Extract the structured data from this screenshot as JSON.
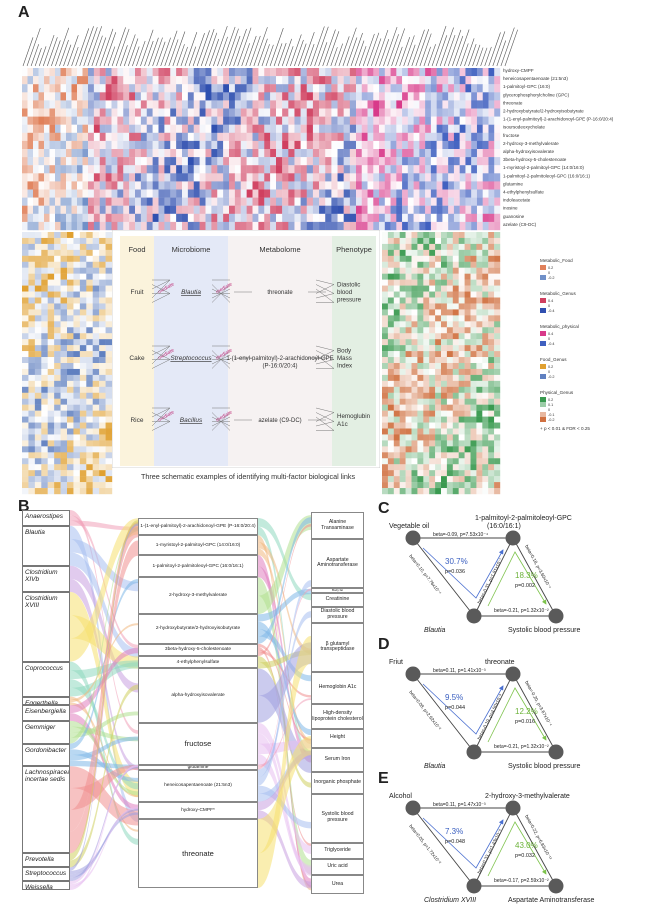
{
  "panels": {
    "a": "A",
    "b": "B",
    "c": "C",
    "d": "D",
    "e": "E"
  },
  "heatmap": {
    "row_labels": [
      "hydroxy-CMPF",
      "heneicosapentaenoate (21:5n3)",
      "1-palmitoyl-GPC (16:0)",
      "glycerophosphorylcholine (GPC)",
      "threonate",
      "2-hydroxybutyrate/2-hydroxyisobutyrate",
      "1-(1-enyl-palmitoyl)-2-arachidonoyl-GPE (P-16:0/20:4)",
      "isoursodeoxycholate",
      "fructose",
      "2-hydroxy-3-methylvalerate",
      "alpha-hydroxyisovalerate",
      "3beta-hydroxy-5-cholestenoate",
      "1-myristoyl-2-palmitoyl-GPC (14:0/16:0)",
      "1-palmitoyl-2-palmitoleoyl-GPC (16:0/16:1)",
      "glutamine",
      "4-ethylphenylsulfate",
      "indoleacetate",
      "inosine",
      "guanosine",
      "azelate (C9-DC)"
    ],
    "legend": [
      {
        "title": "Metabolic_Food",
        "ticks": [
          "0.2",
          "0",
          "-0.2"
        ]
      },
      {
        "title": "Metabolic_Genus",
        "ticks": [
          "0.4",
          "0",
          "-0.4"
        ]
      },
      {
        "title": "Metabolic_physical",
        "ticks": [
          "0.4",
          "0",
          "-0.4"
        ]
      },
      {
        "title": "Food_Genus",
        "ticks": [
          "0.2",
          "0",
          "-0.2"
        ]
      },
      {
        "title": "Physical_Genus",
        "ticks": [
          "0.2",
          "0.1",
          "0",
          "-0.1",
          "-0.2"
        ]
      }
    ],
    "significance_note": "+ p < 0.01 & FDR < 0.25"
  },
  "schematic": {
    "headers": [
      "Food",
      "Microbiome",
      "Metabolome",
      "Phenotype"
    ],
    "rows": [
      {
        "food": "Fruit",
        "genus": "Blautia",
        "metabolite": "threonate",
        "phenotype": "Diastolic blood pressure"
      },
      {
        "food": "Cake",
        "genus": "Streptococcus",
        "metabolite": "1-(1-enyl-palmitoyl)-2-arachidonoyl-GPE (P-16:0/20:4)",
        "phenotype": "Body Mass Index"
      },
      {
        "food": "Rice",
        "genus": "Bacillus",
        "metabolite": "azelate (C9-DC)",
        "phenotype": "Hemoglubin A1c"
      }
    ],
    "link_word": "mediate",
    "caption": "Three schematic examples of identifying multi-factor biological links"
  },
  "sankey": {
    "genera": [
      "Anaerostipes",
      "Blautia",
      "Clostridium XIVb",
      "Clostridium XVIII",
      "Coprococcus",
      "Eggerthella",
      "Eisenbergiella",
      "Gemmiger",
      "Gordonibacter",
      "Lachnospiracea incertae sedis",
      "Prevotella",
      "Streptococcus",
      "Weissella"
    ],
    "metabolites": [
      "1-(1-enyl-palmitoyl)-2-arachidonoyl-GPE (P-16:0/20:4)",
      "1-myristoyl-2-palmitoyl-GPC (14:0/16:0)",
      "1-palmitoyl-2-palmitoleoyl-GPC (16:0/16:1)",
      "2-hydroxy-3-methylvalerate",
      "2-hydroxybutyrate/2-hydroxyisobutyrate",
      "3beta-hydroxy-5-cholestenoate",
      "4-ethylphenylsulfate",
      "alpha-hydroxyisovalerate",
      "fructose",
      "glutamine",
      "heneicosapentaenoate (21:5n3)",
      "hydroxy-CMPF*",
      "threonate"
    ],
    "phenotypes": [
      "Alanine Transaminase",
      "Aspartate Aminotransferase",
      "Body fat",
      "Creatinine",
      "Diastolic blood pressure",
      "β glutamyl transpeptidase",
      "Hemoglobin A1c",
      "High-density lipoprotein cholesterol",
      "Height",
      "Serum Iron",
      "Inorganic phosphate",
      "Systolic blood pressure",
      "Triglyceride",
      "Uric acid",
      "Urea"
    ]
  },
  "triangles": [
    {
      "top_left": "Vegetable oil",
      "top_right": "1-palmitoyl-2-palmitoleoyl-GPC (16:0/16:1)",
      "bottom_left": "Blautia",
      "bottom_right": "Systolic blood pressure",
      "top_edge": "beta=-0.09, p=7.53x10⁻⁴",
      "left_edge": "beta=0.10, p=7.76x10⁻⁴",
      "diag_edge": "beta=-0.31, p=1.81x10⁻⁷",
      "right_edge": "beta=0.18, p=3.60x10⁻⁴",
      "bottom_edge": "beta=-0.21, p=1.32x10⁻²",
      "blue_pct": "30.7%",
      "blue_p": "p=0.036",
      "green_pct": "18.3%",
      "green_p": "p=0.002"
    },
    {
      "top_left": "Friut",
      "top_right": "threonate",
      "bottom_left": "Blautia",
      "bottom_right": "Systolic blood pressure",
      "top_edge": "beta=0.11, p=1.41x10⁻³",
      "left_edge": "beta=0.08, p=2.62x10⁻²",
      "diag_edge": "beta=-0.19, p=4.50x10⁻³",
      "right_edge": "beta=-0.20, p=3.67x10⁻⁴",
      "bottom_edge": "beta=-0.21, p=1.32x10⁻²",
      "blue_pct": "9.5%",
      "blue_p": "p=0.044",
      "green_pct": "12.2%",
      "green_p": "p=0.016"
    },
    {
      "top_left": "Alcohol",
      "top_right": "2-hydroxy-3-methylvalerate",
      "bottom_left": "Clostridium XVIII",
      "bottom_right": "Aspartate Aminotransferase",
      "top_edge": "beta=0.11, p=1.47x10⁻³",
      "left_edge": "beta=0.05, p=1.72x10⁻²",
      "diag_edge": "beta=0.33, p=1.43x10⁻⁸",
      "right_edge": "beta=0.22, p=6.83x10⁻¹²",
      "bottom_edge": "beta=-0.17, p=2.59x10⁻²",
      "blue_pct": "7.3%",
      "blue_p": "p=0.048",
      "green_pct": "43.0%",
      "green_p": "p=0.032"
    }
  ]
}
